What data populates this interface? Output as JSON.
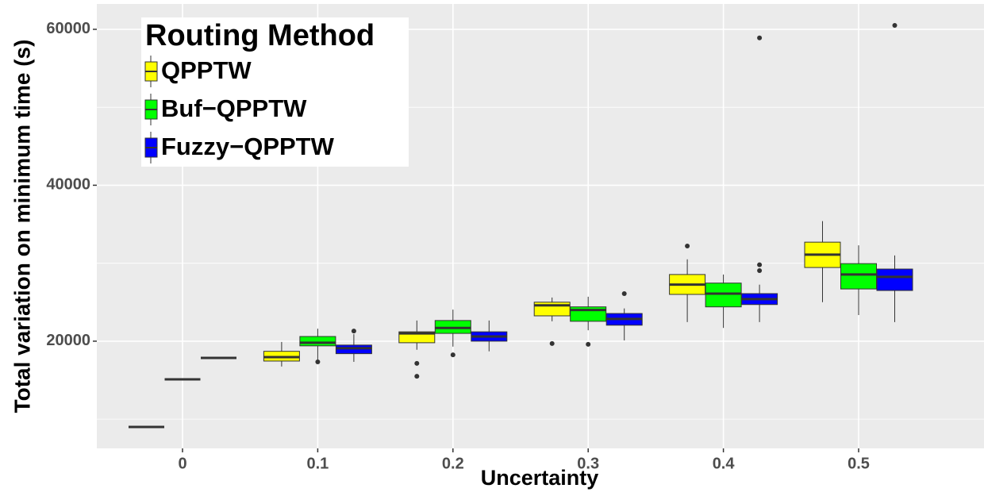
{
  "chart_data": {
    "type": "box",
    "x_label": "Uncertainty",
    "y_label": "Total variation on minimum time (s)",
    "legend_title": "Routing Method",
    "legend_position": "top-left",
    "categories": [
      "0",
      "0.1",
      "0.2",
      "0.3",
      "0.4",
      "0.5"
    ],
    "ylim": [
      6250,
      63250
    ],
    "yticks": [
      20000,
      40000,
      60000
    ],
    "minor_grid_y": [
      10000,
      30000,
      50000
    ],
    "grid": true,
    "series": [
      {
        "name": "QPPTW",
        "color": "#ffff00",
        "boxes": [
          {
            "min": 9000,
            "q1": 9000,
            "median": 9000,
            "q3": 9000,
            "max": 9000,
            "outliers": []
          },
          {
            "min": 16750,
            "q1": 17450,
            "median": 17950,
            "q3": 18700,
            "max": 19900,
            "outliers": []
          },
          {
            "min": 18900,
            "q1": 19800,
            "median": 21000,
            "q3": 21200,
            "max": 22650,
            "outliers": [
              17150,
              15500
            ]
          },
          {
            "min": 22550,
            "q1": 23250,
            "median": 24600,
            "q3": 25000,
            "max": 25600,
            "outliers": [
              19700
            ]
          },
          {
            "min": 22450,
            "q1": 26000,
            "median": 27250,
            "q3": 28550,
            "max": 30500,
            "outliers": [
              32200
            ]
          },
          {
            "min": 25000,
            "q1": 29450,
            "median": 31100,
            "q3": 32700,
            "max": 35400,
            "outliers": []
          }
        ]
      },
      {
        "name": "Buf−QPPTW",
        "color": "#00ff00",
        "boxes": [
          {
            "min": 15100,
            "q1": 15100,
            "median": 15100,
            "q3": 15100,
            "max": 15100,
            "outliers": []
          },
          {
            "min": 17450,
            "q1": 19400,
            "median": 19800,
            "q3": 20600,
            "max": 21600,
            "outliers": [
              17350
            ]
          },
          {
            "min": 19300,
            "q1": 21000,
            "median": 21700,
            "q3": 22650,
            "max": 24050,
            "outliers": [
              18250
            ]
          },
          {
            "min": 21400,
            "q1": 22550,
            "median": 24000,
            "q3": 24400,
            "max": 25700,
            "outliers": [
              19600
            ]
          },
          {
            "min": 21700,
            "q1": 24400,
            "median": 26100,
            "q3": 27450,
            "max": 28550,
            "outliers": []
          },
          {
            "min": 23350,
            "q1": 26700,
            "median": 28550,
            "q3": 29950,
            "max": 32300,
            "outliers": []
          }
        ]
      },
      {
        "name": "Fuzzy−QPPTW",
        "color": "#0000ff",
        "boxes": [
          {
            "min": 17850,
            "q1": 17850,
            "median": 17850,
            "q3": 17850,
            "max": 17850,
            "outliers": []
          },
          {
            "min": 17350,
            "q1": 18400,
            "median": 19100,
            "q3": 19500,
            "max": 20900,
            "outliers": [
              21300
            ]
          },
          {
            "min": 18700,
            "q1": 20000,
            "median": 20600,
            "q3": 21200,
            "max": 22650,
            "outliers": []
          },
          {
            "min": 20100,
            "q1": 22050,
            "median": 22850,
            "q3": 23550,
            "max": 24200,
            "outliers": [
              26100
            ]
          },
          {
            "min": 22450,
            "q1": 24700,
            "median": 25400,
            "q3": 26100,
            "max": 27250,
            "outliers": [
              29800,
              29050,
              58900
            ]
          },
          {
            "min": 22450,
            "q1": 26500,
            "median": 28250,
            "q3": 29250,
            "max": 31000,
            "outliers": [
              60500
            ]
          }
        ]
      }
    ]
  }
}
